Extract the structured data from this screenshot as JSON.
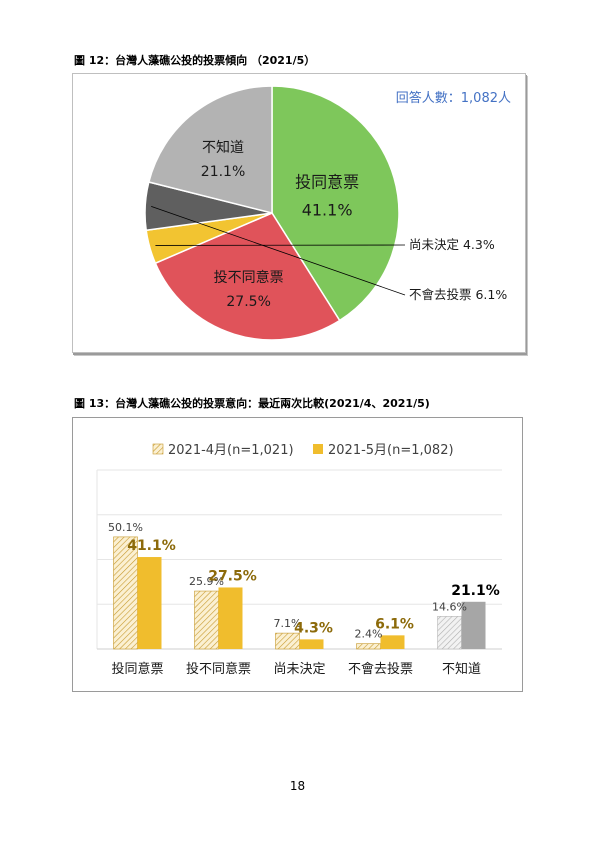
{
  "figure12": {
    "caption": "圖 12：台灣人藻礁公投的投票傾向 （2021/5）",
    "respondents": "回答人數：1,082人",
    "colors": {
      "vote_yes": "#7ec75b",
      "vote_no": "#e0535a",
      "undecided": "#f2c431",
      "not_vote": "#5f5f5f",
      "dont_know": "#b3b3b3",
      "respondents_text": "#4472c4"
    }
  },
  "figure13": {
    "caption": "圖 13：台灣人藻礁公投的投票意向：最近兩次比較(2021/4、2021/5)",
    "colors": {
      "april": "#f5dfa5",
      "may": "#f0bd2d",
      "april_grey": "#dcdcdc",
      "may_grey": "#a6a6a6",
      "label_may": "#8c6a0a"
    }
  },
  "chart_data": [
    {
      "type": "pie",
      "title": "",
      "slices": [
        {
          "name": "投同意票",
          "value": 41.1,
          "label": "41.1%"
        },
        {
          "name": "投不同意票",
          "value": 27.5,
          "label": "27.5%"
        },
        {
          "name": "尚未決定",
          "value": 4.3,
          "label": "4.3%"
        },
        {
          "name": "不會去投票",
          "value": 6.1,
          "label": "6.1%"
        },
        {
          "name": "不知道",
          "value": 21.1,
          "label": "21.1%"
        }
      ]
    },
    {
      "type": "bar",
      "title": "",
      "categories": [
        "投同意票",
        "投不同意票",
        "尚未決定",
        "不會去投票",
        "不知道"
      ],
      "series": [
        {
          "name": "2021-4月(n=1,021)",
          "values": [
            50.1,
            25.9,
            7.1,
            2.4,
            14.6
          ],
          "labels": [
            "50.1%",
            "25.9%",
            "7.1%",
            "2.4%",
            "14.6%"
          ]
        },
        {
          "name": "2021-5月(n=1,082)",
          "values": [
            41.1,
            27.5,
            4.3,
            6.1,
            21.1
          ],
          "labels": [
            "41.1%",
            "27.5%",
            "4.3%",
            "6.1%",
            "21.1%"
          ]
        }
      ],
      "ylim": [
        0,
        80
      ],
      "grid": true,
      "legend": "top"
    }
  ],
  "page_number": "18"
}
